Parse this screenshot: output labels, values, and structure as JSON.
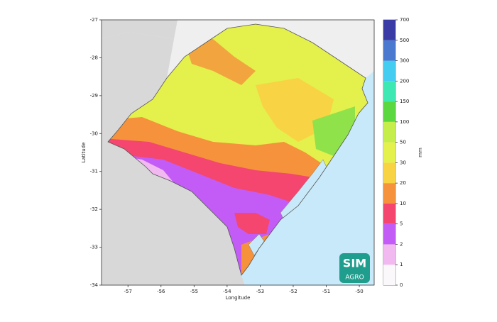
{
  "map": {
    "xlabel": "Longitude",
    "ylabel": "Latitude",
    "xlim": [
      -57.8,
      -49.55
    ],
    "ylim": [
      -34,
      -27
    ],
    "xticks": [
      -57,
      -56,
      -55,
      -54,
      -53,
      -52,
      -51,
      -50
    ],
    "yticks": [
      -34,
      -33,
      -32,
      -31,
      -30,
      -29,
      -28,
      -27
    ],
    "colorbar": {
      "label": "mm",
      "levels": [
        0,
        1,
        2,
        5,
        10,
        20,
        30,
        50,
        100,
        150,
        200,
        300,
        500,
        700
      ],
      "colors": [
        "#fbf8fb",
        "#f2b8f0",
        "#c35cf6",
        "#f4466f",
        "#f5923b",
        "#f8d344",
        "#e4f04c",
        "#c5ee4a",
        "#5bd83f",
        "#3de8b2",
        "#44cdf0",
        "#4a79cf",
        "#3b3ba6"
      ]
    },
    "logo": {
      "line1": "SIM",
      "line2": "AGRO"
    }
  }
}
